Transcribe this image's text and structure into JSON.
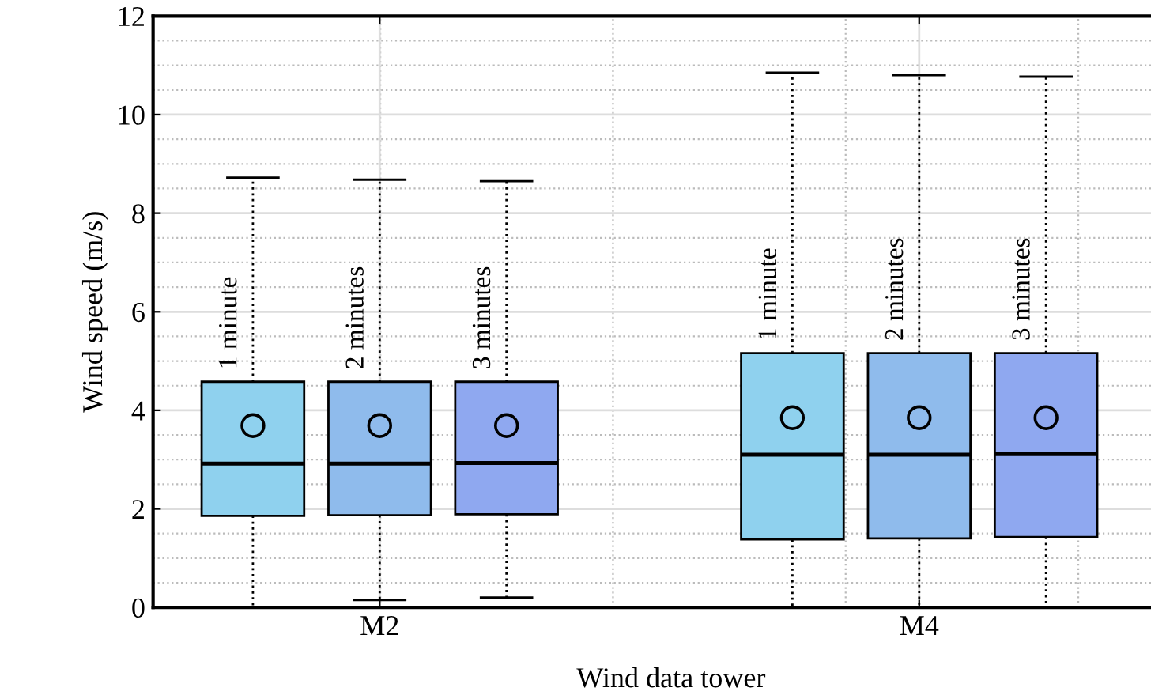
{
  "chart_data": {
    "type": "box",
    "xlabel": "Wind data tower",
    "ylabel": "Wind speed (m/s)",
    "categories": [
      "M2",
      "M4"
    ],
    "ylim": [
      0,
      12
    ],
    "yticks": [
      0,
      2,
      4,
      6,
      8,
      10,
      12
    ],
    "grid": true,
    "marker": "circle",
    "series": [
      {
        "name": "1 minute",
        "color": "#8fd1ee",
        "boxes": [
          {
            "low": 0,
            "q1": 1.86,
            "median": 2.92,
            "q3": 4.58,
            "high": 8.72,
            "mean": 3.69
          },
          {
            "low": 0,
            "q1": 1.38,
            "median": 3.1,
            "q3": 5.16,
            "high": 10.85,
            "mean": 3.85
          }
        ]
      },
      {
        "name": "2 minutes",
        "color": "#8fbbec",
        "boxes": [
          {
            "low": 0.15,
            "q1": 1.87,
            "median": 2.92,
            "q3": 4.58,
            "high": 8.68,
            "mean": 3.69
          },
          {
            "low": 0,
            "q1": 1.4,
            "median": 3.1,
            "q3": 5.16,
            "high": 10.8,
            "mean": 3.85
          }
        ]
      },
      {
        "name": "3 minutes",
        "color": "#8fa8f0",
        "boxes": [
          {
            "low": 0.2,
            "q1": 1.89,
            "median": 2.93,
            "q3": 4.58,
            "high": 8.65,
            "mean": 3.69
          },
          {
            "low": 0,
            "q1": 1.43,
            "median": 3.11,
            "q3": 5.16,
            "high": 10.77,
            "mean": 3.85
          }
        ]
      }
    ]
  }
}
